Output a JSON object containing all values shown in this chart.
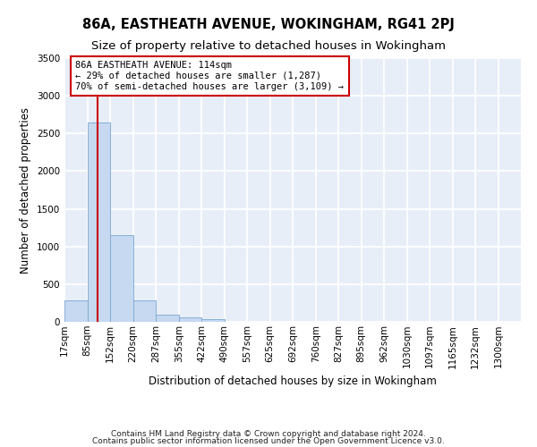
{
  "title": "86A, EASTHEATH AVENUE, WOKINGHAM, RG41 2PJ",
  "subtitle": "Size of property relative to detached houses in Wokingham",
  "xlabel": "Distribution of detached houses by size in Wokingham",
  "ylabel": "Number of detached properties",
  "footnote1": "Contains HM Land Registry data © Crown copyright and database right 2024.",
  "footnote2": "Contains public sector information licensed under the Open Government Licence v3.0.",
  "property_size": 114,
  "property_label": "86A EASTHEATH AVENUE: 114sqm",
  "annotation_line1": "← 29% of detached houses are smaller (1,287)",
  "annotation_line2": "70% of semi-detached houses are larger (3,109) →",
  "bar_edges": [
    17,
    85,
    152,
    220,
    287,
    355,
    422,
    490,
    557,
    625,
    692,
    760,
    827,
    895,
    962,
    1030,
    1097,
    1165,
    1232,
    1300,
    1367
  ],
  "bar_heights": [
    280,
    2640,
    1150,
    290,
    100,
    60,
    35,
    0,
    0,
    0,
    0,
    0,
    0,
    0,
    0,
    0,
    0,
    0,
    0,
    0
  ],
  "bar_color": "#c6d9f0",
  "bar_edge_color": "#7ba7d0",
  "vline_x": 114,
  "vline_color": "#cc0000",
  "annotation_box_color": "#cc0000",
  "ylim": [
    0,
    3500
  ],
  "yticks": [
    0,
    500,
    1000,
    1500,
    2000,
    2500,
    3000,
    3500
  ],
  "bg_color": "#e8eef8",
  "grid_color": "#ffffff",
  "title_fontsize": 10.5,
  "subtitle_fontsize": 9.5,
  "axis_label_fontsize": 8.5,
  "tick_fontsize": 7.5,
  "footnote_fontsize": 6.5
}
